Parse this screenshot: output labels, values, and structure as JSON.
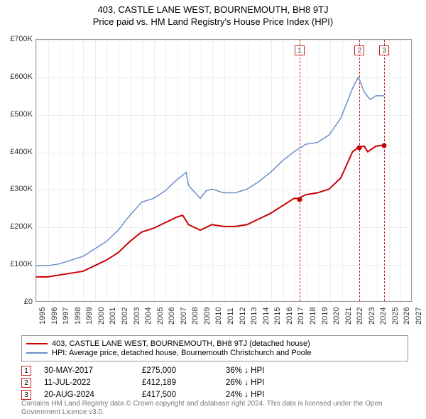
{
  "title1": "403, CASTLE LANE WEST, BOURNEMOUTH, BH8 9TJ",
  "title2": "Price paid vs. HM Land Registry's House Price Index (HPI)",
  "chart": {
    "type": "line",
    "background_color": "#ffffff",
    "grid_color": "#eeeeee",
    "border_color": "#999999",
    "ylim": [
      0,
      700000
    ],
    "ytick_step": 100000,
    "yticks": [
      "£0",
      "£100K",
      "£200K",
      "£300K",
      "£400K",
      "£500K",
      "£600K",
      "£700K"
    ],
    "xlim": [
      1995,
      2027
    ],
    "xticks": [
      1995,
      1996,
      1997,
      1998,
      1999,
      2000,
      2001,
      2002,
      2003,
      2004,
      2005,
      2006,
      2007,
      2008,
      2009,
      2010,
      2011,
      2012,
      2013,
      2014,
      2015,
      2016,
      2017,
      2018,
      2019,
      2020,
      2021,
      2022,
      2023,
      2024,
      2025,
      2026,
      2027
    ],
    "label_fontsize": 11,
    "series": [
      {
        "name": "property",
        "color": "#cc0000",
        "width": 2,
        "data": [
          [
            1995,
            65000
          ],
          [
            1996,
            65000
          ],
          [
            1997,
            70000
          ],
          [
            1998,
            75000
          ],
          [
            1999,
            80000
          ],
          [
            2000,
            95000
          ],
          [
            2001,
            110000
          ],
          [
            2002,
            130000
          ],
          [
            2003,
            160000
          ],
          [
            2004,
            185000
          ],
          [
            2005,
            195000
          ],
          [
            2006,
            210000
          ],
          [
            2007,
            225000
          ],
          [
            2007.5,
            230000
          ],
          [
            2008,
            205000
          ],
          [
            2009,
            190000
          ],
          [
            2010,
            205000
          ],
          [
            2011,
            200000
          ],
          [
            2012,
            200000
          ],
          [
            2013,
            205000
          ],
          [
            2014,
            220000
          ],
          [
            2015,
            235000
          ],
          [
            2016,
            255000
          ],
          [
            2017,
            275000
          ],
          [
            2017.4,
            275000
          ],
          [
            2018,
            285000
          ],
          [
            2019,
            290000
          ],
          [
            2020,
            300000
          ],
          [
            2021,
            330000
          ],
          [
            2022,
            400000
          ],
          [
            2022.5,
            412189
          ],
          [
            2023,
            415000
          ],
          [
            2023.3,
            400000
          ],
          [
            2024,
            415000
          ],
          [
            2024.6,
            417500
          ]
        ]
      },
      {
        "name": "hpi",
        "color": "#6a8fc9",
        "width": 1.5,
        "data": [
          [
            1995,
            95000
          ],
          [
            1996,
            95000
          ],
          [
            1997,
            100000
          ],
          [
            1998,
            110000
          ],
          [
            1999,
            120000
          ],
          [
            2000,
            140000
          ],
          [
            2001,
            160000
          ],
          [
            2002,
            190000
          ],
          [
            2003,
            230000
          ],
          [
            2004,
            265000
          ],
          [
            2005,
            275000
          ],
          [
            2006,
            295000
          ],
          [
            2007,
            325000
          ],
          [
            2007.8,
            345000
          ],
          [
            2008,
            310000
          ],
          [
            2009,
            275000
          ],
          [
            2009.5,
            295000
          ],
          [
            2010,
            300000
          ],
          [
            2011,
            290000
          ],
          [
            2012,
            290000
          ],
          [
            2013,
            300000
          ],
          [
            2014,
            320000
          ],
          [
            2015,
            345000
          ],
          [
            2016,
            375000
          ],
          [
            2017,
            400000
          ],
          [
            2018,
            420000
          ],
          [
            2019,
            425000
          ],
          [
            2020,
            445000
          ],
          [
            2021,
            490000
          ],
          [
            2022,
            570000
          ],
          [
            2022.5,
            600000
          ],
          [
            2023,
            560000
          ],
          [
            2023.5,
            540000
          ],
          [
            2024,
            550000
          ],
          [
            2024.7,
            550000
          ]
        ]
      }
    ],
    "markers": [
      {
        "num": "1",
        "x": 2017.4,
        "y": 275000
      },
      {
        "num": "2",
        "x": 2022.5,
        "y": 412189
      },
      {
        "num": "3",
        "x": 2024.6,
        "y": 417500
      }
    ]
  },
  "legend": {
    "items": [
      {
        "color": "#cc0000",
        "label": "403, CASTLE LANE WEST, BOURNEMOUTH, BH8 9TJ (detached house)"
      },
      {
        "color": "#6a8fc9",
        "label": "HPI: Average price, detached house, Bournemouth Christchurch and Poole"
      }
    ]
  },
  "table": {
    "rows": [
      {
        "num": "1",
        "date": "30-MAY-2017",
        "price": "£275,000",
        "diff": "36% ↓ HPI"
      },
      {
        "num": "2",
        "date": "11-JUL-2022",
        "price": "£412,189",
        "diff": "26% ↓ HPI"
      },
      {
        "num": "3",
        "date": "20-AUG-2024",
        "price": "£417,500",
        "diff": "24% ↓ HPI"
      }
    ]
  },
  "footer": "Contains HM Land Registry data © Crown copyright and database right 2024. This data is licensed under the Open Government Licence v3.0.",
  "colors": {
    "marker_border": "#cc2222",
    "footer_text": "#777777"
  }
}
